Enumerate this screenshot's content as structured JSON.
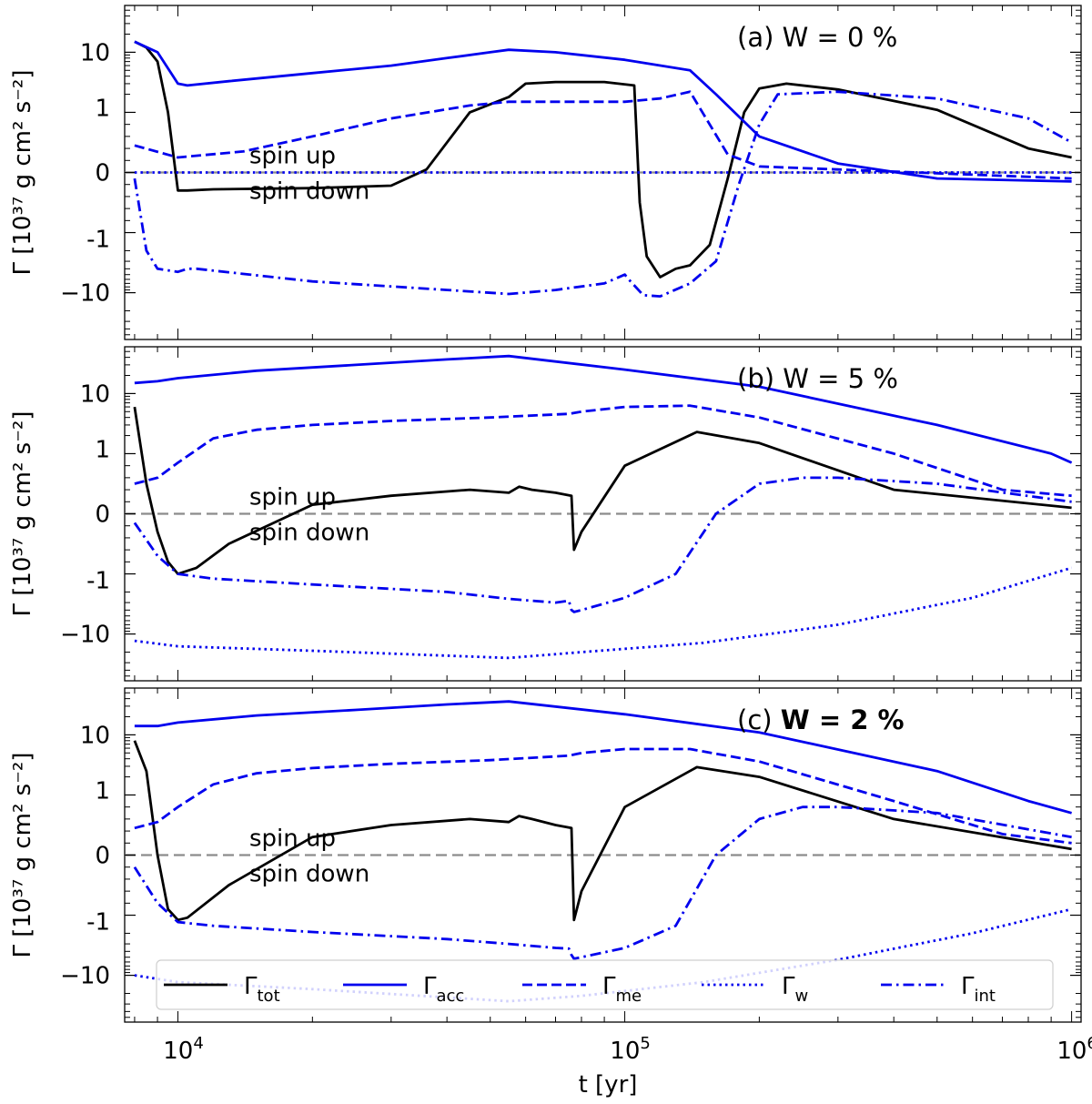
{
  "figure": {
    "xlabel": "t [yr]",
    "ylabel": "Γ [10³⁷ g cm² s⁻²]",
    "x_ticks": [
      {
        "value": 10000,
        "base": "10",
        "exp": "4"
      },
      {
        "value": 100000,
        "base": "10",
        "exp": "5"
      },
      {
        "value": 1000000,
        "base": "10",
        "exp": "6"
      }
    ],
    "y_ticks": [
      {
        "value": 10,
        "label": "10"
      },
      {
        "value": 1,
        "label": "1"
      },
      {
        "value": 0,
        "label": "0"
      },
      {
        "value": -1,
        "label": "-1"
      },
      {
        "value": -10,
        "label": "−10"
      }
    ],
    "spin_up_label": "spin up",
    "spin_down_label": "spin down",
    "colors": {
      "tot": "#000000",
      "blue": "#0000ee",
      "zero_line": "#8c8c8c"
    }
  },
  "legend": [
    {
      "key": "tot",
      "symbol": "Γ",
      "sub": "tot",
      "style": "solid",
      "color": "#000000"
    },
    {
      "key": "acc",
      "symbol": "Γ",
      "sub": "acc",
      "style": "solid",
      "color": "#0000ee"
    },
    {
      "key": "me",
      "symbol": "Γ",
      "sub": "me",
      "style": "dashed",
      "color": "#0000ee"
    },
    {
      "key": "w",
      "symbol": "Γ",
      "sub": "w",
      "style": "dotted",
      "color": "#0000ee"
    },
    {
      "key": "int",
      "symbol": "Γ",
      "sub": "int",
      "style": "dashdot",
      "color": "#0000ee"
    }
  ],
  "chart_data": [
    {
      "type": "line",
      "title": "(a) W = 0 %",
      "title_prefix": "(a) ",
      "title_main": "W = 0 %",
      "title_bold": false,
      "xlabel": "t [yr]",
      "ylabel": "Γ [10^37 g cm^2 s^-2]",
      "xscale": "log",
      "yscale": "symlog",
      "xlim": [
        7600,
        1050000
      ],
      "ylim": [
        -60,
        60
      ],
      "series": [
        {
          "name": "tot",
          "style": "solid",
          "color": "#000000",
          "x": [
            8000,
            8500,
            9000,
            9500,
            10000,
            10500,
            12000,
            20000,
            30000,
            36000,
            45000,
            55000,
            60000,
            70000,
            90000,
            105000,
            108000,
            112000,
            120000,
            130000,
            140000,
            155000,
            170000,
            185000,
            200000,
            230000,
            300000,
            500000,
            800000,
            1000000
          ],
          "values": [
            15,
            12,
            7,
            1,
            -0.3,
            -0.3,
            -0.28,
            -0.26,
            -0.22,
            0.05,
            1,
            1.8,
            3,
            3.2,
            3.2,
            2.8,
            -0.5,
            -2.5,
            -5.5,
            -4,
            -3.5,
            -1.6,
            -0.1,
            1,
            2.5,
            3,
            2.4,
            1.1,
            0.4,
            0.25
          ]
        },
        {
          "name": "acc",
          "style": "solid",
          "color": "#0000ee",
          "x": [
            8000,
            9000,
            10000,
            10500,
            13000,
            20000,
            30000,
            40000,
            50000,
            55000,
            70000,
            100000,
            140000,
            160000,
            200000,
            300000,
            500000,
            1000000
          ],
          "values": [
            15,
            10,
            3,
            2.8,
            3.3,
            4.5,
            6,
            8,
            10,
            11,
            10,
            7.5,
            5,
            2,
            0.6,
            0.15,
            -0.1,
            -0.15
          ]
        },
        {
          "name": "me",
          "style": "dashed",
          "color": "#0000ee",
          "x": [
            8000,
            10000,
            14000,
            20000,
            30000,
            45000,
            55000,
            70000,
            100000,
            120000,
            140000,
            170000,
            200000,
            300000,
            1000000
          ],
          "values": [
            0.45,
            0.25,
            0.35,
            0.6,
            0.9,
            1.3,
            1.5,
            1.5,
            1.5,
            1.7,
            2.2,
            0.3,
            0.1,
            0.05,
            -0.1
          ]
        },
        {
          "name": "w",
          "style": "dotted",
          "color": "#0000ee",
          "x": [
            8000,
            1000000
          ],
          "values": [
            0,
            0
          ]
        },
        {
          "name": "int",
          "style": "dashdot",
          "color": "#0000ee",
          "x": [
            8000,
            8500,
            9000,
            10000,
            10500,
            11000,
            20000,
            40000,
            55000,
            70000,
            90000,
            100000,
            103000,
            110000,
            120000,
            140000,
            160000,
            180000,
            200000,
            220000,
            300000,
            500000,
            800000,
            1000000
          ],
          "values": [
            -0.1,
            -2,
            -4,
            -4.5,
            -4,
            -4,
            -6.5,
            -9,
            -10.5,
            -9,
            -7,
            -5,
            -6.5,
            -11,
            -11.5,
            -7,
            -3,
            -0.2,
            0.8,
            2,
            2.2,
            1.7,
            0.9,
            0.5
          ]
        }
      ]
    },
    {
      "type": "line",
      "title": "(b) W = 5 %",
      "title_prefix": "(b) ",
      "title_main": "W = 5 %",
      "title_bold": false,
      "xlabel": "t [yr]",
      "ylabel": "Γ [10^37 g cm^2 s^-2]",
      "xscale": "log",
      "yscale": "symlog",
      "xlim": [
        7600,
        1050000
      ],
      "ylim": [
        -60,
        60
      ],
      "series": [
        {
          "name": "tot",
          "style": "solid",
          "color": "#000000",
          "x": [
            8000,
            8500,
            9000,
            9500,
            10000,
            11000,
            13000,
            20000,
            30000,
            45000,
            55000,
            58000,
            62000,
            70000,
            76000,
            77000,
            80000,
            100000,
            145000,
            200000,
            400000,
            1000000
          ],
          "values": [
            6,
            0.5,
            -0.3,
            -0.8,
            -1,
            -0.9,
            -0.5,
            0.15,
            0.3,
            0.4,
            0.35,
            0.45,
            0.4,
            0.35,
            0.3,
            -0.6,
            -0.3,
            0.8,
            2.3,
            1.5,
            0.4,
            0.1
          ]
        },
        {
          "name": "acc",
          "style": "solid",
          "color": "#0000ee",
          "x": [
            8000,
            9000,
            10000,
            15000,
            25000,
            40000,
            55000,
            100000,
            200000,
            500000,
            900000,
            1000000
          ],
          "values": [
            15,
            16,
            18,
            24,
            30,
            37,
            42,
            25,
            13,
            3,
            1,
            0.85
          ]
        },
        {
          "name": "me",
          "style": "dashed",
          "color": "#0000ee",
          "x": [
            8000,
            9000,
            10000,
            12000,
            15000,
            20000,
            30000,
            50000,
            75000,
            80000,
            100000,
            140000,
            200000,
            400000,
            700000,
            1000000
          ],
          "values": [
            0.5,
            0.6,
            0.85,
            1.8,
            2.5,
            3,
            3.5,
            4,
            4.6,
            5,
            6,
            6.3,
            4,
            1,
            0.4,
            0.3
          ]
        },
        {
          "name": "w",
          "style": "dotted",
          "color": "#0000ee",
          "x": [
            8000,
            10000,
            20000,
            55000,
            80000,
            150000,
            300000,
            600000,
            1000000
          ],
          "values": [
            -13,
            -16,
            -19,
            -25,
            -20,
            -14,
            -7,
            -2.5,
            -0.9
          ]
        },
        {
          "name": "int",
          "style": "dashdot",
          "color": "#0000ee",
          "x": [
            8000,
            9000,
            10000,
            12000,
            20000,
            40000,
            55000,
            70000,
            75000,
            76000,
            77000,
            80000,
            100000,
            130000,
            160000,
            200000,
            250000,
            300000,
            500000,
            1000000
          ],
          "values": [
            -0.15,
            -0.7,
            -1,
            -1.2,
            -1.5,
            -2,
            -2.6,
            -3,
            -2.8,
            -4,
            -4.3,
            -4,
            -2.5,
            -1,
            0,
            0.5,
            0.6,
            0.6,
            0.5,
            0.2
          ]
        }
      ]
    },
    {
      "type": "line",
      "title": "(c) W = 2 %",
      "title_prefix": "(c) ",
      "title_main": "W = 2 %",
      "title_bold": true,
      "xlabel": "t [yr]",
      "ylabel": "Γ [10^37 g cm^2 s^-2]",
      "xscale": "log",
      "yscale": "symlog",
      "xlim": [
        7600,
        1050000
      ],
      "ylim": [
        -60,
        60
      ],
      "series": [
        {
          "name": "tot",
          "style": "solid",
          "color": "#000000",
          "x": [
            8000,
            8500,
            9000,
            9500,
            10000,
            10500,
            13000,
            20000,
            30000,
            45000,
            55000,
            58000,
            62000,
            70000,
            76000,
            77000,
            80000,
            100000,
            145000,
            200000,
            400000,
            1000000
          ],
          "values": [
            8,
            2.5,
            0,
            -0.9,
            -1.2,
            -1.1,
            -0.5,
            0.3,
            0.5,
            0.6,
            0.55,
            0.65,
            0.6,
            0.5,
            0.45,
            -1.2,
            -0.6,
            0.8,
            2.9,
            2,
            0.6,
            0.1
          ]
        },
        {
          "name": "acc",
          "style": "solid",
          "color": "#0000ee",
          "x": [
            8000,
            9000,
            10000,
            15000,
            25000,
            40000,
            55000,
            100000,
            200000,
            500000,
            800000,
            1000000
          ],
          "values": [
            14,
            14,
            16,
            21,
            26,
            32,
            36,
            22,
            11,
            2.5,
            0.9,
            0.7
          ]
        },
        {
          "name": "me",
          "style": "dashed",
          "color": "#0000ee",
          "x": [
            8000,
            9000,
            10000,
            12000,
            15000,
            20000,
            30000,
            50000,
            75000,
            80000,
            100000,
            140000,
            200000,
            400000,
            700000,
            1000000
          ],
          "values": [
            0.45,
            0.55,
            0.8,
            1.5,
            2.3,
            2.8,
            3.3,
            3.8,
            4.5,
            5,
            5.8,
            5.8,
            3.6,
            0.9,
            0.35,
            0.2
          ]
        },
        {
          "name": "w",
          "style": "dotted",
          "color": "#0000ee",
          "x": [
            8000,
            10000,
            20000,
            55000,
            80000,
            150000,
            300000,
            600000,
            1000000
          ],
          "values": [
            -10,
            -13,
            -17,
            -27,
            -22,
            -13,
            -5.5,
            -2,
            -0.9
          ]
        },
        {
          "name": "int",
          "style": "dashdot",
          "color": "#0000ee",
          "x": [
            8000,
            9000,
            10000,
            12000,
            20000,
            40000,
            55000,
            70000,
            75000,
            76000,
            77000,
            80000,
            100000,
            130000,
            160000,
            200000,
            250000,
            300000,
            500000,
            1000000
          ],
          "values": [
            -0.2,
            -0.8,
            -1.3,
            -1.5,
            -1.9,
            -2.5,
            -3,
            -3.5,
            -3.6,
            -4.6,
            -5.3,
            -5,
            -3.5,
            -1.5,
            0,
            0.6,
            0.8,
            0.8,
            0.7,
            0.3
          ]
        }
      ]
    }
  ]
}
